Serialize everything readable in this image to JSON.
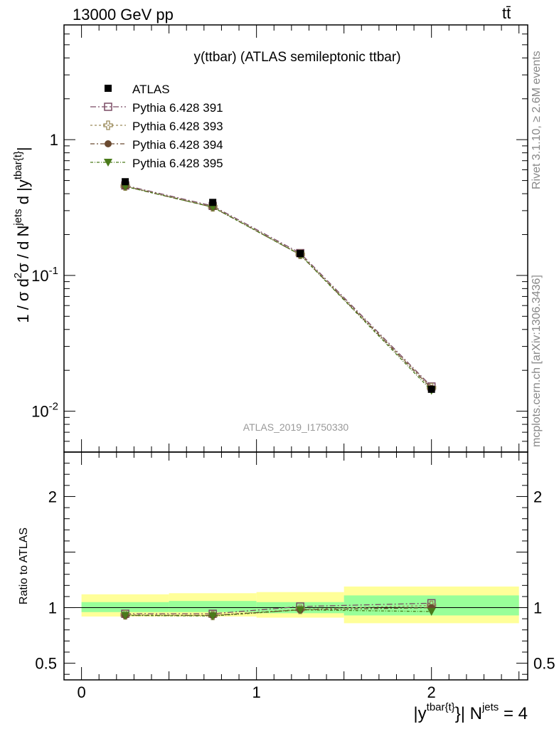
{
  "header": {
    "energy_label": "13000 GeV pp",
    "process_label": "tt̄"
  },
  "side_labels": {
    "rivet": "Rivet 3.1.10, ≥ 2.6M events",
    "mcplots": "mcplots.cern.ch [arXiv:1306.3436]"
  },
  "chart_data": {
    "type": "line",
    "title": "y(ttbar) (ATLAS semileptonic ttbar)",
    "analysis_id": "ATLAS_2019_I1750330",
    "xlabel": "|y^{tbar{t}}| N^{jets} = 4",
    "ylabel": "1 / σ d²σ / d N^{jets} d |y^{tbar{t}}|",
    "ratio_ylabel": "Ratio to ATLAS",
    "xlim": [
      -0.1,
      2.55
    ],
    "ylim": [
      0.005,
      7
    ],
    "yscale": "log",
    "ratio_ylim": [
      0.35,
      2.4
    ],
    "x_ticks": [
      "0",
      "1",
      "2"
    ],
    "y_ticks": [
      "10^{-2}",
      "10^{-1}",
      "1"
    ],
    "ratio_ticks": [
      "0.5",
      "1",
      "2"
    ],
    "legend_position": "top-left",
    "bins": [
      {
        "lo": 0.0,
        "hi": 0.5
      },
      {
        "lo": 0.5,
        "hi": 1.0
      },
      {
        "lo": 1.0,
        "hi": 1.5
      },
      {
        "lo": 1.5,
        "hi": 2.5
      }
    ],
    "x": [
      0.25,
      0.75,
      1.25,
      2.0
    ],
    "data": {
      "name": "ATLAS",
      "values": [
        0.49,
        0.345,
        0.145,
        0.0145
      ],
      "band_inner": [
        [
          0.96,
          1.05
        ],
        [
          0.96,
          1.06
        ],
        [
          0.95,
          1.05
        ],
        [
          0.93,
          1.11
        ]
      ],
      "band_outer": [
        [
          0.92,
          1.12
        ],
        [
          0.92,
          1.13
        ],
        [
          0.91,
          1.14
        ],
        [
          0.86,
          1.19
        ]
      ]
    },
    "series": [
      {
        "name": "Pythia 6.428 391",
        "color": "#7a4a63",
        "marker": "open-square",
        "values": [
          0.46,
          0.325,
          0.146,
          0.0152
        ],
        "ratio": [
          0.945,
          0.945,
          1.01,
          1.04
        ]
      },
      {
        "name": "Pythia 6.428 393",
        "color": "#9a8a5a",
        "marker": "open-cross",
        "values": [
          0.455,
          0.32,
          0.143,
          0.0149
        ],
        "ratio": [
          0.935,
          0.93,
          0.985,
          1.02
        ]
      },
      {
        "name": "Pythia 6.428 394",
        "color": "#6a4a30",
        "marker": "filled-circle",
        "values": [
          0.452,
          0.318,
          0.142,
          0.0147
        ],
        "ratio": [
          0.93,
          0.93,
          0.98,
          1.0
        ]
      },
      {
        "name": "Pythia 6.428 395",
        "color": "#4a7a1a",
        "marker": "filled-triangle-down",
        "values": [
          0.452,
          0.318,
          0.142,
          0.0142
        ],
        "ratio": [
          0.93,
          0.925,
          0.98,
          0.965
        ]
      }
    ],
    "colors": {
      "band_inner": "#99ff99",
      "band_outer": "#ffff99",
      "data": "#000000"
    }
  }
}
